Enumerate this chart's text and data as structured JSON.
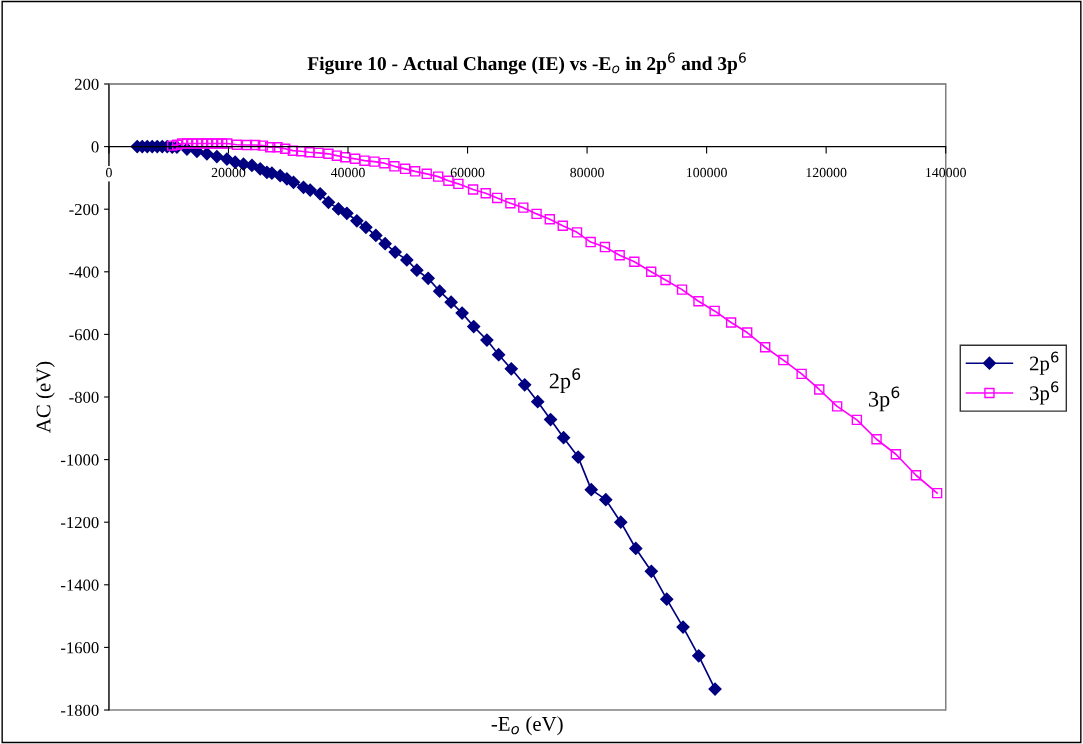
{
  "chart_data": {
    "type": "line",
    "title": "Figure 10 - Actual Change (IE) vs -E$_{o}$ in 2p$^{6}$ and 3p$^{6}$",
    "xlabel": "-E$_{o}$ (eV)",
    "ylabel": "AC (eV)",
    "xlim": [
      0,
      140000
    ],
    "xticks": [
      0,
      20000,
      40000,
      60000,
      80000,
      100000,
      120000,
      140000
    ],
    "ylim": [
      -1800,
      200
    ],
    "yticks": [
      -1800,
      -1600,
      -1400,
      -1200,
      -1000,
      -800,
      -600,
      -400,
      -200,
      0,
      200
    ],
    "grid": false,
    "legend": "right",
    "annotations": [
      {
        "text": "2p$^{6}$",
        "x": 71740,
        "y": -815
      },
      {
        "text": "3p$^{6}$",
        "x": 125140,
        "y": -873
      }
    ],
    "series": [
      {
        "name": "2p$^{6}$",
        "color": "#000080",
        "marker": "diamond",
        "x": [
          4730,
          5570,
          6410,
          7240,
          8080,
          8920,
          9750,
          10590,
          11370,
          13050,
          14720,
          16390,
          18060,
          19740,
          21120,
          22510,
          23920,
          25310,
          26430,
          27260,
          28650,
          29770,
          30880,
          32550,
          33670,
          35340,
          36730,
          38400,
          39810,
          41480,
          42990,
          44660,
          46210,
          47890,
          49840,
          51520,
          53410,
          55330,
          57250,
          59090,
          61030,
          63240,
          65200,
          67320,
          69560,
          71740,
          73890,
          76070,
          78510,
          80700,
          83130,
          85640,
          88150,
          90750,
          93330,
          96060,
          98680,
          101410
        ],
        "values": [
          0,
          0,
          0,
          0,
          0,
          0,
          0,
          -2,
          -2,
          -8,
          -15,
          -23,
          -32,
          -40,
          -50,
          -56,
          -60,
          -71,
          -82,
          -85,
          -93,
          -103,
          -114,
          -130,
          -139,
          -151,
          -178,
          -199,
          -213,
          -237,
          -258,
          -284,
          -310,
          -337,
          -362,
          -395,
          -421,
          -462,
          -497,
          -532,
          -575,
          -618,
          -665,
          -710,
          -761,
          -815,
          -872,
          -930,
          -992,
          -1096,
          -1128,
          -1200,
          -1284,
          -1357,
          -1446,
          -1535,
          -1627,
          -1733
        ]
      },
      {
        "name": "3p$^{6}$",
        "color": "#ff00ff",
        "marker": "square",
        "x": [
          10590,
          11420,
          12260,
          13100,
          13930,
          14770,
          15600,
          16440,
          17280,
          18110,
          18950,
          19790,
          21410,
          23080,
          24470,
          25760,
          26980,
          28200,
          29490,
          30770,
          32160,
          33550,
          35060,
          36730,
          38130,
          39520,
          41190,
          42750,
          44420,
          46090,
          47770,
          49560,
          51230,
          53170,
          55090,
          56800,
          58470,
          60930,
          63040,
          64960,
          67170,
          69330,
          71550,
          73760,
          75930,
          78320,
          80600,
          82990,
          85450,
          87910,
          90730,
          93130,
          95890,
          98640,
          101340,
          104100,
          106790,
          109800,
          112840,
          115900,
          118850,
          121840,
          125140,
          128430,
          131670,
          135040,
          138570
        ],
        "values": [
          3,
          6,
          10,
          10,
          10,
          10,
          10,
          10,
          10,
          10,
          10,
          10,
          6,
          5,
          5,
          3,
          -2,
          -2,
          -7,
          -13,
          -15,
          -18,
          -20,
          -23,
          -29,
          -34,
          -39,
          -45,
          -48,
          -53,
          -63,
          -71,
          -79,
          -87,
          -96,
          -109,
          -119,
          -137,
          -149,
          -164,
          -181,
          -195,
          -215,
          -232,
          -253,
          -274,
          -305,
          -321,
          -347,
          -368,
          -400,
          -426,
          -457,
          -494,
          -525,
          -562,
          -594,
          -641,
          -682,
          -726,
          -776,
          -830,
          -873,
          -935,
          -983,
          -1050,
          -1107
        ]
      }
    ]
  }
}
